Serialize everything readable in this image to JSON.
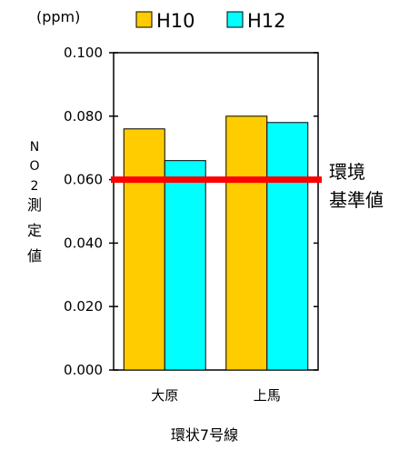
{
  "chart_data": {
    "type": "bar",
    "unit": "(ppm)",
    "categories": [
      "大原",
      "上馬"
    ],
    "series": [
      {
        "name": "H10",
        "values": [
          0.076,
          0.08
        ],
        "color": "#FFCC00"
      },
      {
        "name": "H12",
        "values": [
          0.066,
          0.078
        ],
        "color": "#00FFFF"
      }
    ],
    "xlabel": "環状7号線",
    "ylabel": [
      "N",
      "O",
      "2",
      "測",
      "定",
      "値"
    ],
    "ylim": [
      0,
      0.1
    ],
    "yticks": [
      "0.000",
      "0.020",
      "0.040",
      "0.060",
      "0.080",
      "0.100"
    ],
    "standard": {
      "value": 0.06,
      "label_lines": [
        "環境",
        "基準値"
      ],
      "color": "#FF0000"
    },
    "legend_position": "top",
    "grid": false
  }
}
